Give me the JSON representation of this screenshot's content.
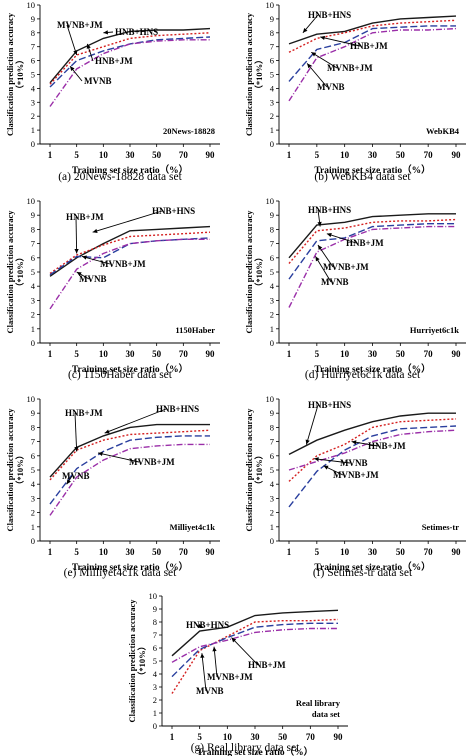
{
  "figure": {
    "background": "#ffffff"
  },
  "styles": {
    "hnb_hns": {
      "color": "#1a1a1a",
      "dash": "none"
    },
    "hnb_jm": {
      "color": "#d42020",
      "dash": "2,2"
    },
    "mvnb_jm": {
      "color": "#2a3f9e",
      "dash": "7,3"
    },
    "mvnb": {
      "color": "#9a2ea8",
      "dash": "6,2,1,2"
    }
  },
  "chart_data": [
    {
      "type": "line",
      "panel_label": "(a) 20News-18828 data set",
      "inner_label": "20News-18828",
      "ylabel": "Classification prediction accuracy（*10%）",
      "xlabel": "Training set size ratio（%）",
      "x": [
        1,
        5,
        10,
        30,
        50,
        70,
        90
      ],
      "ylim": [
        0,
        10
      ],
      "yticks": [
        0,
        1,
        2,
        3,
        4,
        5,
        6,
        7,
        8,
        9,
        10
      ],
      "series": [
        {
          "name": "HNB+HNS",
          "style": "hnb_hns",
          "values": [
            4.4,
            6.7,
            7.6,
            8.1,
            8.2,
            8.2,
            8.3
          ]
        },
        {
          "name": "HNB+JM",
          "style": "hnb_jm",
          "values": [
            4.3,
            6.4,
            7.0,
            7.6,
            7.8,
            7.9,
            8.0
          ]
        },
        {
          "name": "MVNB+JM",
          "style": "mvnb_jm",
          "values": [
            4.1,
            6.0,
            6.7,
            7.2,
            7.5,
            7.6,
            7.7
          ]
        },
        {
          "name": "MVNB",
          "style": "mvnb",
          "values": [
            2.7,
            5.4,
            6.5,
            7.2,
            7.4,
            7.5,
            7.5
          ]
        }
      ]
    },
    {
      "type": "line",
      "panel_label": "(b) WebKB4 data set",
      "inner_label": "WebKB4",
      "ylabel": "Classification prediction accuracy（*10%）",
      "xlabel": "Training set size ratio（%）",
      "x": [
        1,
        5,
        10,
        30,
        50,
        70,
        90
      ],
      "ylim": [
        0,
        10
      ],
      "yticks": [
        0,
        1,
        2,
        3,
        4,
        5,
        6,
        7,
        8,
        9,
        10
      ],
      "series": [
        {
          "name": "HNB+HNS",
          "style": "hnb_hns",
          "values": [
            7.2,
            7.9,
            8.1,
            8.7,
            9.0,
            9.1,
            9.2
          ]
        },
        {
          "name": "HNB+JM",
          "style": "hnb_jm",
          "values": [
            6.6,
            7.6,
            8.0,
            8.5,
            8.7,
            8.8,
            8.9
          ]
        },
        {
          "name": "MVNB+JM",
          "style": "mvnb_jm",
          "values": [
            4.5,
            6.8,
            7.3,
            8.3,
            8.4,
            8.5,
            8.5
          ]
        },
        {
          "name": "MVNB",
          "style": "mvnb",
          "values": [
            3.1,
            6.2,
            7.0,
            8.0,
            8.2,
            8.2,
            8.3
          ]
        }
      ]
    },
    {
      "type": "line",
      "panel_label": "(c) 1150Haber data set",
      "inner_label": "1150Haber",
      "ylabel": "Classification prediction accuracy（*10%）",
      "xlabel": "Training set size ratio（%）",
      "x": [
        1,
        5,
        10,
        30,
        50,
        70,
        90
      ],
      "ylim": [
        0,
        10
      ],
      "yticks": [
        0,
        1,
        2,
        3,
        4,
        5,
        6,
        7,
        8,
        9,
        10
      ],
      "series": [
        {
          "name": "HNB+HNS",
          "style": "hnb_hns",
          "values": [
            4.7,
            6.0,
            7.0,
            7.9,
            8.0,
            8.1,
            8.2
          ]
        },
        {
          "name": "HNB+JM",
          "style": "hnb_jm",
          "values": [
            4.9,
            6.2,
            6.9,
            7.5,
            7.6,
            7.7,
            7.8
          ]
        },
        {
          "name": "MVNB+JM",
          "style": "mvnb_jm",
          "values": [
            4.8,
            6.1,
            6.0,
            7.0,
            7.2,
            7.3,
            7.4
          ]
        },
        {
          "name": "MVNB",
          "style": "mvnb",
          "values": [
            2.4,
            5.2,
            6.3,
            7.0,
            7.2,
            7.3,
            7.3
          ]
        }
      ]
    },
    {
      "type": "line",
      "panel_label": "(d) Hurriyet6c1k data set",
      "inner_label": "Hurriyet6c1k",
      "ylabel": "Classification prediction accuracy（*10%）",
      "xlabel": "Training set size ratio（%）",
      "x": [
        1,
        5,
        10,
        30,
        50,
        70,
        90
      ],
      "ylim": [
        0,
        10
      ],
      "yticks": [
        0,
        1,
        2,
        3,
        4,
        5,
        6,
        7,
        8,
        9,
        10
      ],
      "series": [
        {
          "name": "HNB+HNS",
          "style": "hnb_hns",
          "values": [
            6.0,
            8.3,
            8.5,
            8.9,
            9.0,
            9.1,
            9.1
          ]
        },
        {
          "name": "HNB+JM",
          "style": "hnb_jm",
          "values": [
            5.6,
            7.9,
            8.1,
            8.5,
            8.6,
            8.6,
            8.7
          ]
        },
        {
          "name": "MVNB+JM",
          "style": "mvnb_jm",
          "values": [
            4.5,
            7.2,
            7.4,
            8.2,
            8.3,
            8.4,
            8.4
          ]
        },
        {
          "name": "MVNB",
          "style": "mvnb",
          "values": [
            2.5,
            6.4,
            7.3,
            8.0,
            8.1,
            8.2,
            8.2
          ]
        }
      ]
    },
    {
      "type": "line",
      "panel_label": "(e) Milliyet4c1k data set",
      "inner_label": "Milliyet4c1k",
      "ylabel": "Classification prediction accuracy（*10%）",
      "xlabel": "Training set size ratio（%）",
      "x": [
        1,
        5,
        10,
        30,
        50,
        70,
        90
      ],
      "ylim": [
        0,
        10
      ],
      "yticks": [
        0,
        1,
        2,
        3,
        4,
        5,
        6,
        7,
        8,
        9,
        10
      ],
      "series": [
        {
          "name": "HNB+HNS",
          "style": "hnb_hns",
          "values": [
            4.5,
            6.6,
            7.4,
            8.0,
            8.2,
            8.2,
            8.2
          ]
        },
        {
          "name": "HNB+JM",
          "style": "hnb_jm",
          "values": [
            4.3,
            6.4,
            7.1,
            7.5,
            7.6,
            7.7,
            7.8
          ]
        },
        {
          "name": "MVNB+JM",
          "style": "mvnb_jm",
          "values": [
            2.6,
            5.1,
            6.3,
            7.1,
            7.3,
            7.4,
            7.4
          ]
        },
        {
          "name": "MVNB",
          "style": "mvnb",
          "values": [
            1.8,
            4.5,
            5.7,
            6.5,
            6.7,
            6.8,
            6.8
          ]
        }
      ]
    },
    {
      "type": "line",
      "panel_label": "(f) Setimes-tr data set",
      "inner_label": "Setimes-tr",
      "ylabel": "Classification prediction accuracy（*10%）",
      "xlabel": "Training set size ratio（%）",
      "x": [
        1,
        5,
        10,
        30,
        50,
        70,
        90
      ],
      "ylim": [
        0,
        10
      ],
      "yticks": [
        0,
        1,
        2,
        3,
        4,
        5,
        6,
        7,
        8,
        9,
        10
      ],
      "series": [
        {
          "name": "HNB+HNS",
          "style": "hnb_hns",
          "values": [
            6.1,
            7.1,
            7.8,
            8.4,
            8.8,
            9.0,
            9.0
          ]
        },
        {
          "name": "HNB+JM",
          "style": "hnb_jm",
          "values": [
            4.2,
            6.0,
            6.8,
            8.0,
            8.4,
            8.5,
            8.6
          ]
        },
        {
          "name": "MVNB+JM",
          "style": "mvnb_jm",
          "values": [
            2.4,
            4.9,
            6.4,
            7.4,
            7.9,
            8.0,
            8.1
          ]
        },
        {
          "name": "MVNB",
          "style": "mvnb",
          "values": [
            5.0,
            5.6,
            6.2,
            7.0,
            7.5,
            7.7,
            7.8
          ]
        }
      ]
    },
    {
      "type": "line",
      "panel_label": "(g) Real library data set",
      "inner_label": "Real library data set",
      "inner_label_lines": [
        "Real library",
        "data set"
      ],
      "ylabel": "Classification prediction accuracy（*10%）",
      "xlabel": "Training set size ratio（%）",
      "x": [
        1,
        5,
        10,
        30,
        50,
        70,
        90
      ],
      "ylim": [
        0,
        10
      ],
      "yticks": [
        0,
        1,
        2,
        3,
        4,
        5,
        6,
        7,
        8,
        9,
        10
      ],
      "series": [
        {
          "name": "HNB+HNS",
          "style": "hnb_hns",
          "values": [
            5.4,
            7.3,
            7.6,
            8.5,
            8.7,
            8.8,
            8.9
          ]
        },
        {
          "name": "HNB+JM",
          "style": "hnb_jm",
          "values": [
            2.5,
            5.8,
            6.9,
            8.0,
            8.1,
            8.1,
            8.2
          ]
        },
        {
          "name": "MVNB+JM",
          "style": "mvnb_jm",
          "values": [
            3.8,
            5.9,
            6.8,
            7.6,
            7.8,
            7.9,
            7.9
          ]
        },
        {
          "name": "MVNB",
          "style": "mvnb",
          "values": [
            4.9,
            6.1,
            6.6,
            7.2,
            7.4,
            7.5,
            7.5
          ]
        }
      ]
    }
  ]
}
